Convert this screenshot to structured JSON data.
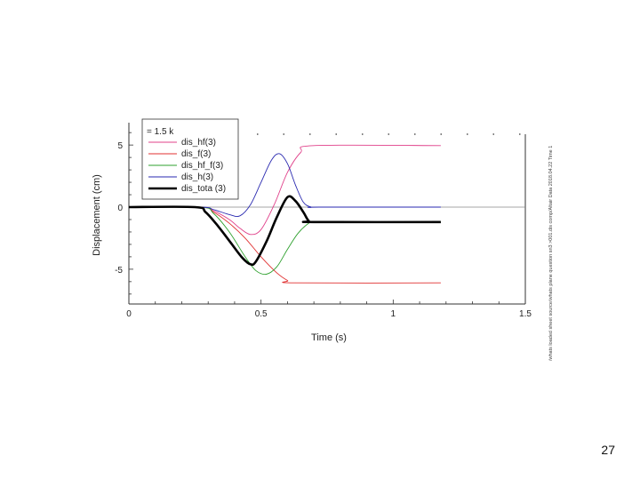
{
  "page_number": "27",
  "side_note": "/whats loaded sheet source/whats plane question sn3 >001.dis comp/Altair Data 2018.04.22 Time 1",
  "legend_header": "= 1.5 k",
  "chart_data": {
    "type": "line",
    "title": "",
    "xlabel": "Time (s)",
    "ylabel": "Displacement (cm)",
    "xlim": [
      0,
      1.5
    ],
    "ylim": [
      -7.8,
      6.8
    ],
    "x_ticks": [
      0,
      0.5,
      1,
      1.5
    ],
    "x_tick_labels": [
      "0",
      "0.5",
      "1",
      "1.5"
    ],
    "y_ticks": [
      -5,
      0,
      5
    ],
    "y_tick_labels": [
      "-5",
      "0",
      "5"
    ],
    "grid": false,
    "zero_line": true,
    "legend_position": "top-left",
    "series": [
      {
        "name": "dis_hf(3)",
        "color": "#e0408a",
        "x": [
          0,
          0.27,
          0.32,
          0.38,
          0.42,
          0.46,
          0.5,
          0.55,
          0.6,
          0.65,
          0.7,
          1.18
        ],
        "y": [
          0,
          0,
          -0.3,
          -1.0,
          -1.7,
          -2.2,
          -1.8,
          0.2,
          2.8,
          4.4,
          4.95,
          4.95
        ]
      },
      {
        "name": "dis_f(3)",
        "color": "#e03030",
        "x": [
          0,
          0.27,
          0.32,
          0.38,
          0.44,
          0.5,
          0.56,
          0.6,
          0.63,
          1.18
        ],
        "y": [
          0,
          0,
          -0.4,
          -1.3,
          -2.5,
          -4.0,
          -5.3,
          -5.9,
          -6.1,
          -6.1
        ]
      },
      {
        "name": "dis_hf_f(3)",
        "color": "#2ea02e",
        "x": [
          0,
          0.27,
          0.32,
          0.38,
          0.44,
          0.48,
          0.52,
          0.56,
          0.6,
          0.64,
          0.68,
          0.7,
          1.18
        ],
        "y": [
          0,
          0,
          -0.5,
          -2.0,
          -4.0,
          -5.1,
          -5.4,
          -4.8,
          -3.4,
          -2.1,
          -1.3,
          -1.2,
          -1.2
        ]
      },
      {
        "name": "dis_h(3)",
        "color": "#2a2ab0",
        "x": [
          0,
          0.27,
          0.32,
          0.38,
          0.42,
          0.46,
          0.5,
          0.54,
          0.57,
          0.6,
          0.63,
          0.66,
          0.69,
          0.72,
          1.18
        ],
        "y": [
          0,
          0,
          -0.2,
          -0.6,
          -0.7,
          0.2,
          2.0,
          3.8,
          4.3,
          3.5,
          1.8,
          0.4,
          0,
          0,
          0
        ]
      },
      {
        "name": "dis_tota (3)",
        "color": "#000000",
        "bold": true,
        "x": [
          0,
          0.25,
          0.29,
          0.34,
          0.39,
          0.43,
          0.46,
          0.48,
          0.52,
          0.56,
          0.6,
          0.63,
          0.66,
          0.68,
          0.7,
          1.18
        ],
        "y": [
          0,
          0,
          -0.4,
          -1.6,
          -3.0,
          -4.1,
          -4.6,
          -4.4,
          -2.8,
          -0.8,
          0.8,
          0.5,
          -0.4,
          -1.1,
          -1.2,
          -1.2
        ]
      }
    ]
  }
}
